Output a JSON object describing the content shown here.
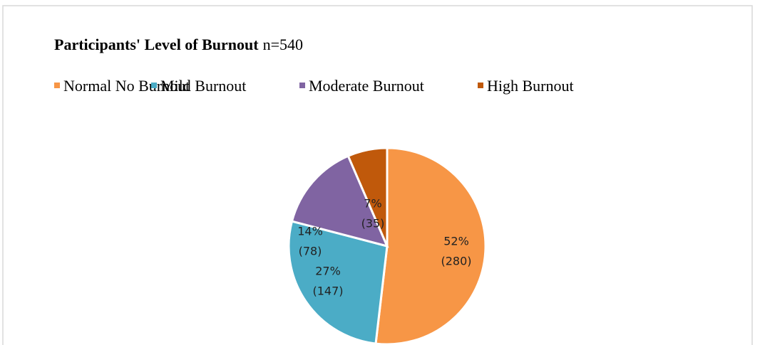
{
  "chart_data": {
    "type": "pie",
    "title": "Participants' Level of Burnout",
    "subtitle": "n=540",
    "categories": [
      "Normal No Burnout",
      "Mild Burnout",
      "Moderate Burnout",
      "High Burnout"
    ],
    "values": [
      280,
      147,
      78,
      35
    ],
    "value_labels": [
      "(280)",
      "(147)",
      "(78)",
      "(35)"
    ],
    "percent_labels": [
      "52%",
      "27%",
      "14%",
      "7%"
    ],
    "colors": [
      "#f79646",
      "#4bacc6",
      "#8064a2",
      "#c0590b"
    ],
    "legend": "top"
  }
}
